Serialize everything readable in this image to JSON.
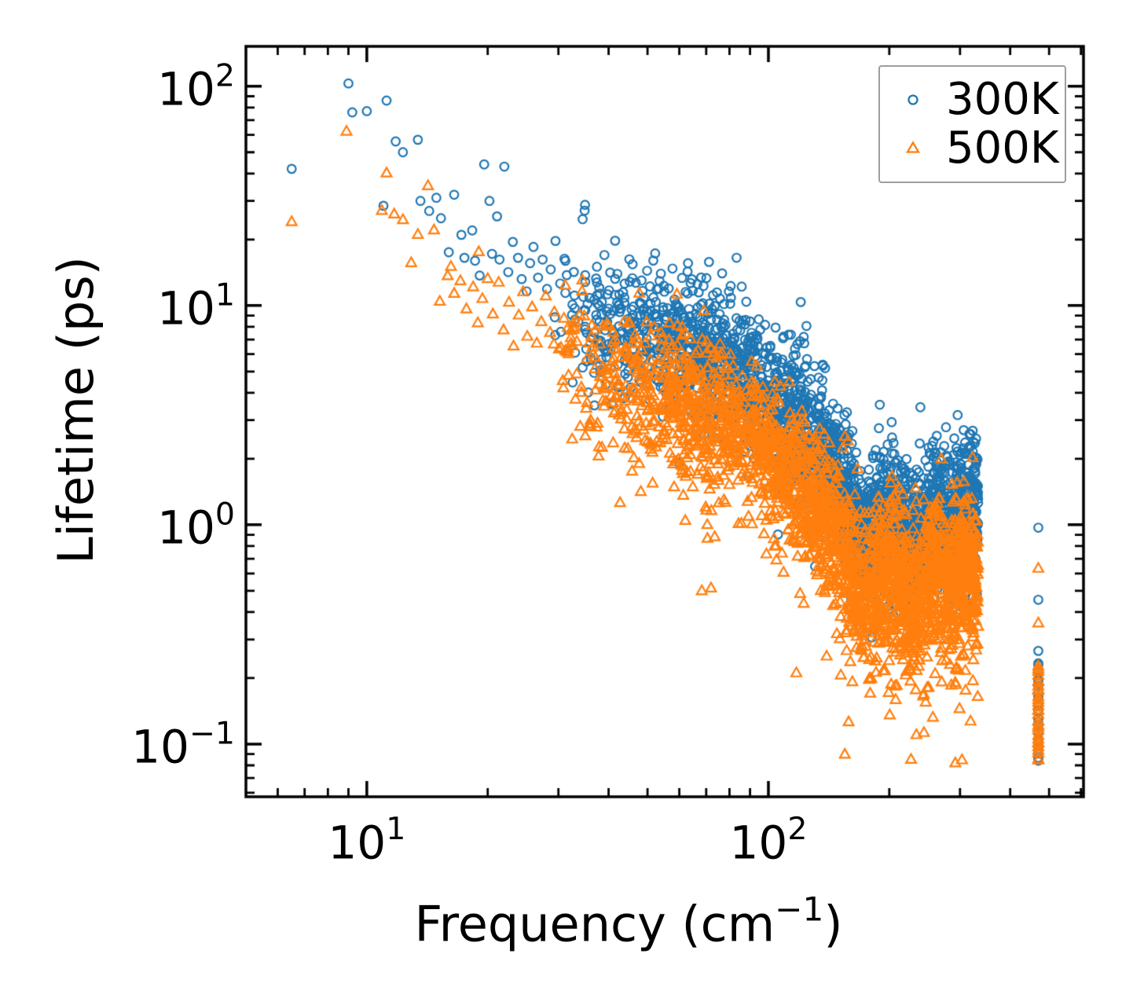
{
  "chart_data": {
    "type": "scatter",
    "title": "",
    "xlabel": {
      "text": "Frequency (cm",
      "sup": "−1",
      "suffix": ")"
    },
    "ylabel": "Lifetime (ps)",
    "x_scale": "log",
    "y_scale": "log",
    "xlim": [
      5.0,
      609
    ],
    "ylim": [
      0.0575,
      152
    ],
    "grid": false,
    "x_major_ticks": [
      {
        "value": 10,
        "base": "10",
        "exp": "1"
      },
      {
        "value": 100,
        "base": "10",
        "exp": "2"
      }
    ],
    "y_major_ticks": [
      {
        "value": 100,
        "base": "10",
        "exp": "2"
      },
      {
        "value": 10,
        "base": "10",
        "exp": "1"
      },
      {
        "value": 1,
        "base": "10",
        "exp": "0"
      },
      {
        "value": 0.1,
        "base": "10",
        "exp": "−1"
      }
    ],
    "legend": {
      "position": "top-right",
      "border_color": "#9e9e9e",
      "entries": [
        {
          "label": "300K",
          "marker": "circle",
          "color": "#1f77b4"
        },
        {
          "label": "500K",
          "marker": "triangle",
          "color": "#ff7f0e"
        }
      ]
    },
    "seed": 20240613,
    "series": [
      {
        "name": "300K",
        "color": "#1f77b4",
        "marker": "circle",
        "sparse_points": [
          [
            6.5,
            42
          ],
          [
            9.0,
            103
          ],
          [
            9.2,
            76
          ],
          [
            10.0,
            77
          ],
          [
            11.2,
            86
          ],
          [
            11.0,
            28.5
          ],
          [
            11.8,
            56
          ],
          [
            12.3,
            50
          ],
          [
            13.4,
            57
          ],
          [
            13.6,
            30
          ],
          [
            14.3,
            27
          ],
          [
            14.9,
            31
          ],
          [
            15.3,
            25
          ],
          [
            16.0,
            17.5
          ],
          [
            16.5,
            32
          ],
          [
            17.2,
            21
          ],
          [
            17.5,
            16.5
          ],
          [
            18.3,
            22
          ],
          [
            18.6,
            16
          ],
          [
            19.1,
            13.7
          ],
          [
            19.6,
            44
          ],
          [
            20.2,
            30
          ],
          [
            20.5,
            17.2
          ],
          [
            21.1,
            25.5
          ],
          [
            21.4,
            16.2
          ],
          [
            22.0,
            43
          ],
          [
            22.5,
            14.2
          ],
          [
            23.1,
            19.5
          ],
          [
            23.8,
            16.5
          ],
          [
            24.3,
            13.2
          ],
          [
            25.0,
            11.6
          ],
          [
            25.5,
            15.6
          ],
          [
            26.0,
            18.5
          ],
          [
            26.7,
            13.4
          ],
          [
            27.4,
            16.2
          ],
          [
            28.1,
            11.9
          ],
          [
            28.7,
            14.6
          ],
          [
            29.5,
            19.7
          ],
          [
            30.3,
            12.6
          ]
        ],
        "band": {
          "f_min": 29,
          "f_max": 333,
          "count": 2600,
          "sigma_dex": 0.16,
          "skew": 0.55,
          "median_knots": [
            [
              6.5,
              40
            ],
            [
              9,
              55
            ],
            [
              12,
              33
            ],
            [
              16,
              20
            ],
            [
              22,
              13.5
            ],
            [
              30,
              10
            ],
            [
              42,
              8.3
            ],
            [
              55,
              7.0
            ],
            [
              70,
              5.9
            ],
            [
              80,
              5.3
            ],
            [
              90,
              4.4
            ],
            [
              100,
              3.6
            ],
            [
              117,
              3.0
            ],
            [
              130,
              2.35
            ],
            [
              142,
              1.8
            ],
            [
              155,
              1.35
            ],
            [
              168,
              0.95
            ],
            [
              176,
              0.9
            ],
            [
              188,
              1.08
            ],
            [
              200,
              1.1
            ],
            [
              212,
              1.0
            ],
            [
              222,
              0.88
            ],
            [
              232,
              0.8
            ],
            [
              245,
              0.95
            ],
            [
              263,
              1.25
            ],
            [
              285,
              0.95
            ],
            [
              300,
              1.1
            ],
            [
              315,
              1.25
            ],
            [
              332,
              1.0
            ]
          ],
          "tail": {
            "direction": "up",
            "prob": 0.02,
            "sigma": 0.12
          }
        },
        "column": {
          "f": 470,
          "singles": [
            0.97,
            0.455,
            0.266
          ],
          "tau_range": [
            0.085,
            0.235
          ],
          "count": 28
        }
      },
      {
        "name": "500K",
        "color": "#ff7f0e",
        "marker": "triangle",
        "sparse_points": [
          [
            6.5,
            24
          ],
          [
            8.9,
            62
          ],
          [
            10.9,
            27
          ],
          [
            11.2,
            40
          ],
          [
            11.7,
            26
          ],
          [
            12.3,
            24.5
          ],
          [
            12.9,
            15.6
          ],
          [
            13.4,
            21
          ],
          [
            14.2,
            35
          ],
          [
            14.7,
            22
          ],
          [
            15.2,
            10.4
          ],
          [
            15.9,
            13.6
          ],
          [
            16.2,
            15.0
          ],
          [
            16.5,
            11.3
          ],
          [
            17.1,
            12.9
          ],
          [
            17.7,
            9.6
          ],
          [
            18.4,
            12.1
          ],
          [
            18.9,
            8.3
          ],
          [
            19.0,
            17.5
          ],
          [
            19.4,
            10.7
          ],
          [
            20.0,
            13.2
          ],
          [
            20.6,
            9.1
          ],
          [
            21.3,
            12.7
          ],
          [
            21.9,
            7.7
          ],
          [
            22.6,
            10.3
          ],
          [
            23.2,
            6.5
          ],
          [
            23.9,
            9.0
          ],
          [
            24.5,
            11.5
          ],
          [
            25.1,
            7.2
          ],
          [
            25.8,
            9.8
          ],
          [
            26.5,
            6.7
          ],
          [
            27.2,
            8.4
          ],
          [
            27.9,
            11.0
          ],
          [
            28.6,
            7.5
          ],
          [
            29.3,
            9.3
          ],
          [
            30.1,
            6.3
          ]
        ],
        "band": {
          "f_min": 29,
          "f_max": 333,
          "count": 2600,
          "sigma_dex": 0.17,
          "skew": 0.55,
          "median_knots": [
            [
              6.5,
              22
            ],
            [
              9,
              30
            ],
            [
              12,
              18
            ],
            [
              16,
              11
            ],
            [
              22,
              7.4
            ],
            [
              30,
              5.5
            ],
            [
              42,
              4.6
            ],
            [
              55,
              3.85
            ],
            [
              70,
              3.25
            ],
            [
              80,
              2.9
            ],
            [
              90,
              2.4
            ],
            [
              100,
              2.0
            ],
            [
              117,
              1.65
            ],
            [
              130,
              1.3
            ],
            [
              142,
              1.0
            ],
            [
              155,
              0.74
            ],
            [
              168,
              0.52
            ],
            [
              176,
              0.5
            ],
            [
              188,
              0.59
            ],
            [
              200,
              0.6
            ],
            [
              212,
              0.55
            ],
            [
              222,
              0.48
            ],
            [
              232,
              0.44
            ],
            [
              245,
              0.52
            ],
            [
              263,
              0.69
            ],
            [
              285,
              0.52
            ],
            [
              300,
              0.6
            ],
            [
              315,
              0.69
            ],
            [
              332,
              0.55
            ]
          ],
          "tail": {
            "direction": "down",
            "prob": 0.07,
            "sigma": 0.26
          }
        },
        "column": {
          "f": 470,
          "singles": [
            0.63,
            0.355
          ],
          "tau_range": [
            0.083,
            0.225
          ],
          "count": 30
        }
      }
    ]
  }
}
